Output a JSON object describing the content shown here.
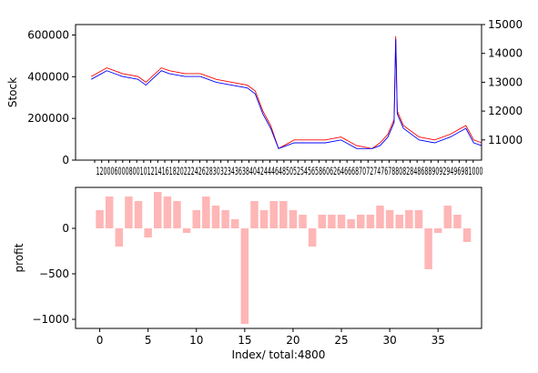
{
  "chart_data": [
    {
      "type": "line",
      "ylabel": "Stock",
      "left_axis": {
        "ylim": [
          0,
          650000
        ],
        "ticks": [
          0,
          200000,
          400000,
          600000
        ],
        "tick_labels": [
          "0",
          "200000",
          "400000",
          "600000"
        ]
      },
      "right_axis": {
        "ylim": [
          10300,
          15000
        ],
        "ticks": [
          11000,
          12000,
          13000,
          14000,
          15000
        ],
        "tick_labels": [
          "11000",
          "12000",
          "13000",
          "14000",
          "15000"
        ]
      },
      "xlim": [
        -200,
        5000
      ],
      "x_ticks_label_text": "1200060008001012141618202224262830323436384042444648505254565860626466687072747678808284868890929496981000",
      "series": [
        {
          "color": "#ff0000",
          "points": [
            [
              0,
              13200
            ],
            [
              200,
              13500
            ],
            [
              400,
              13300
            ],
            [
              600,
              13200
            ],
            [
              700,
              13000
            ],
            [
              900,
              13500
            ],
            [
              1000,
              13400
            ],
            [
              1200,
              13300
            ],
            [
              1400,
              13300
            ],
            [
              1600,
              13100
            ],
            [
              1800,
              13000
            ],
            [
              2000,
              12900
            ],
            [
              2100,
              12700
            ],
            [
              2200,
              12000
            ],
            [
              2300,
              11500
            ],
            [
              2400,
              10700
            ],
            [
              2600,
              11000
            ],
            [
              2800,
              11000
            ],
            [
              3000,
              11000
            ],
            [
              3200,
              11100
            ],
            [
              3400,
              10800
            ],
            [
              3600,
              10700
            ],
            [
              3700,
              10900
            ],
            [
              3800,
              11200
            ],
            [
              3880,
              11700
            ],
            [
              3900,
              14600
            ],
            [
              3920,
              12000
            ],
            [
              4000,
              11500
            ],
            [
              4200,
              11100
            ],
            [
              4400,
              11000
            ],
            [
              4600,
              11200
            ],
            [
              4800,
              11500
            ],
            [
              4900,
              11000
            ],
            [
              5000,
              10900
            ]
          ]
        },
        {
          "color": "#0000ff",
          "points": [
            [
              0,
              13100
            ],
            [
              200,
              13400
            ],
            [
              400,
              13200
            ],
            [
              600,
              13100
            ],
            [
              700,
              12900
            ],
            [
              900,
              13400
            ],
            [
              1000,
              13300
            ],
            [
              1200,
              13200
            ],
            [
              1400,
              13200
            ],
            [
              1600,
              13000
            ],
            [
              1800,
              12900
            ],
            [
              2000,
              12800
            ],
            [
              2100,
              12600
            ],
            [
              2200,
              11900
            ],
            [
              2300,
              11400
            ],
            [
              2400,
              10700
            ],
            [
              2600,
              10900
            ],
            [
              2800,
              10900
            ],
            [
              3000,
              10900
            ],
            [
              3200,
              11000
            ],
            [
              3400,
              10700
            ],
            [
              3600,
              10700
            ],
            [
              3700,
              10800
            ],
            [
              3800,
              11100
            ],
            [
              3880,
              11600
            ],
            [
              3900,
              14500
            ],
            [
              3920,
              11900
            ],
            [
              4000,
              11400
            ],
            [
              4200,
              11000
            ],
            [
              4400,
              10900
            ],
            [
              4600,
              11100
            ],
            [
              4800,
              11400
            ],
            [
              4900,
              10900
            ],
            [
              5000,
              10800
            ]
          ]
        }
      ]
    },
    {
      "type": "bar",
      "ylabel": "profit",
      "xlabel": "Index/ total:4800",
      "color": "#ffb6b6",
      "ylim": [
        -1100,
        450
      ],
      "xlim": [
        -2.5,
        39.5
      ],
      "y_ticks": [
        -1000,
        -500,
        0
      ],
      "x_ticks": [
        0,
        5,
        10,
        15,
        20,
        25,
        30,
        35
      ],
      "values": [
        200,
        350,
        -200,
        350,
        300,
        -100,
        400,
        350,
        300,
        -50,
        200,
        350,
        250,
        200,
        100,
        -1050,
        300,
        200,
        300,
        300,
        200,
        150,
        -200,
        150,
        150,
        150,
        100,
        150,
        150,
        250,
        200,
        150,
        200,
        200,
        -450,
        -50,
        250,
        150,
        -150
      ]
    }
  ]
}
